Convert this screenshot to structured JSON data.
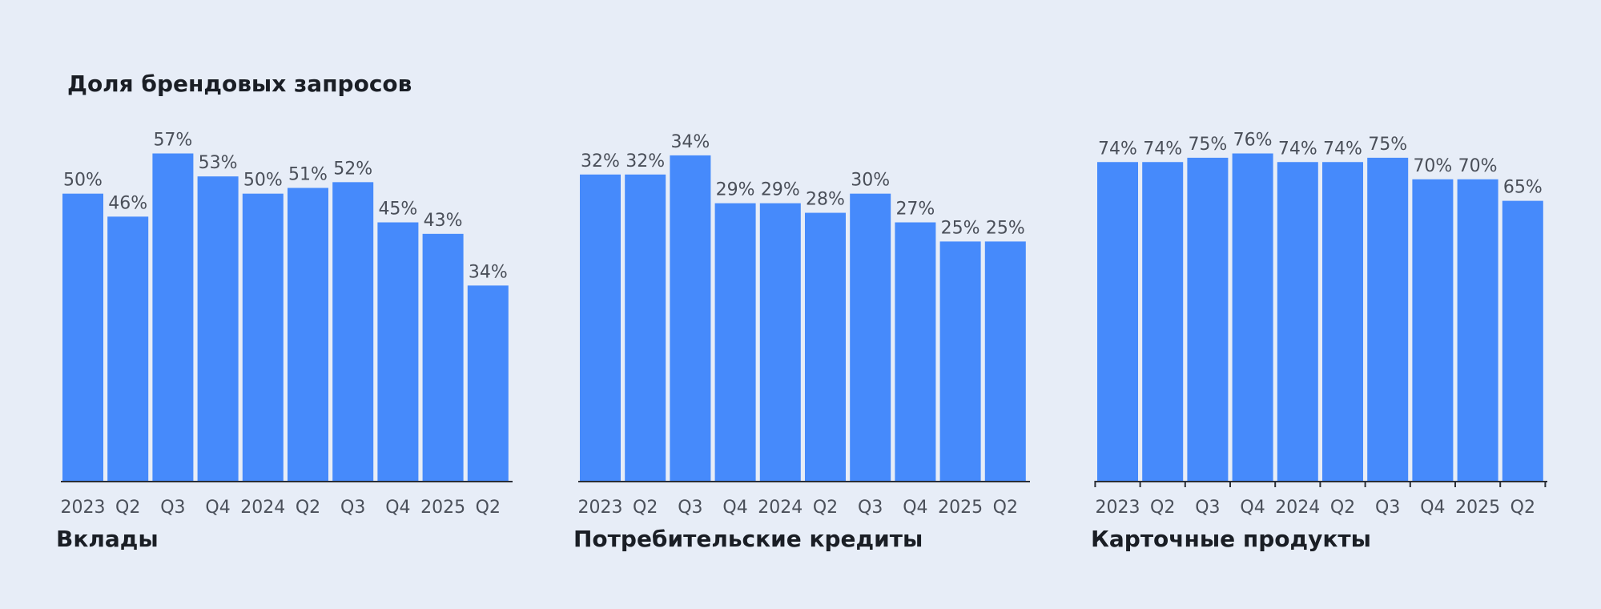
{
  "title": "Доля брендовых запросов",
  "colors": {
    "background": "#e7edf7",
    "bar": "#468afb",
    "axis": "#2a2e36",
    "value_label": "#4a4f59",
    "tick_label": "#4a4f59",
    "caption": "#1a1e25"
  },
  "chart_data": [
    {
      "type": "bar",
      "title": "Вклады",
      "categories": [
        "2023",
        "Q2",
        "Q3",
        "Q4",
        "2024",
        "Q2",
        "Q3",
        "Q4",
        "2025",
        "Q2"
      ],
      "values": [
        50,
        46,
        57,
        53,
        50,
        51,
        52,
        45,
        43,
        34
      ],
      "value_labels": [
        "50%",
        "46%",
        "57%",
        "53%",
        "50%",
        "51%",
        "52%",
        "45%",
        "43%",
        "34%"
      ],
      "ylim": [
        0,
        60
      ],
      "grid": false,
      "axis_ticks": false
    },
    {
      "type": "bar",
      "title": "Потребительские кредиты",
      "categories": [
        "2023",
        "Q2",
        "Q3",
        "Q4",
        "2024",
        "Q2",
        "Q3",
        "Q4",
        "2025",
        "Q2"
      ],
      "values": [
        32,
        32,
        34,
        29,
        29,
        28,
        30,
        27,
        25,
        25
      ],
      "value_labels": [
        "32%",
        "32%",
        "34%",
        "29%",
        "29%",
        "28%",
        "30%",
        "27%",
        "25%",
        "25%"
      ],
      "ylim": [
        0,
        36
      ],
      "grid": false,
      "axis_ticks": false
    },
    {
      "type": "bar",
      "title": "Карточные продукты",
      "categories": [
        "2023",
        "Q2",
        "Q3",
        "Q4",
        "2024",
        "Q2",
        "Q3",
        "Q4",
        "2025",
        "Q2"
      ],
      "values": [
        74,
        74,
        75,
        76,
        74,
        74,
        75,
        70,
        70,
        65
      ],
      "value_labels": [
        "74%",
        "74%",
        "75%",
        "76%",
        "74%",
        "74%",
        "75%",
        "70%",
        "70%",
        "65%"
      ],
      "ylim": [
        0,
        80
      ],
      "grid": false,
      "axis_ticks": true
    }
  ]
}
